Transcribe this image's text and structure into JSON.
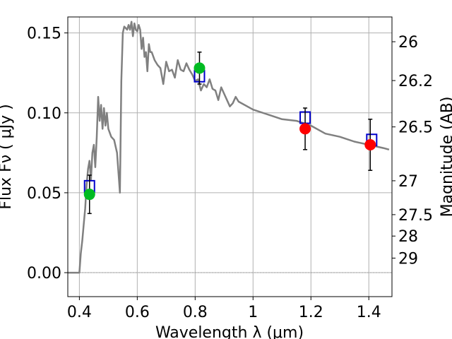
{
  "chart_data": {
    "type": "line",
    "xlabel": "Wavelength  λ (μm)",
    "ylabel": "Flux  Fν  ( μJy )",
    "ylabel_right": "Magnitude (AB)",
    "xlim": [
      0.36,
      1.48
    ],
    "ylim": [
      -0.015,
      0.16
    ],
    "grid": true,
    "x_ticks": [
      0.4,
      0.6,
      0.8,
      1.0,
      1.2,
      1.4
    ],
    "x_tick_labels": [
      "0.4",
      "0.6",
      "0.8",
      "1",
      "1.2",
      "1.4"
    ],
    "y_ticks": [
      0.0,
      0.05,
      0.1,
      0.15
    ],
    "y_tick_labels": [
      "0.00",
      "0.05",
      "0.10",
      "0.15"
    ],
    "right_ticks": [
      {
        "label": "26",
        "flux": 0.1445
      },
      {
        "label": "26.2",
        "flux": 0.1202
      },
      {
        "label": "26.5",
        "flux": 0.0912
      },
      {
        "label": "27",
        "flux": 0.0575
      },
      {
        "label": "27.5",
        "flux": 0.0363
      },
      {
        "label": "28",
        "flux": 0.0229
      },
      {
        "label": "29",
        "flux": 0.0091
      }
    ],
    "series": [
      {
        "kind": "template-spectrum",
        "color": "#808080",
        "x": [
          0.36,
          0.4,
          0.405,
          0.41,
          0.415,
          0.42,
          0.425,
          0.43,
          0.435,
          0.44,
          0.445,
          0.45,
          0.455,
          0.46,
          0.465,
          0.47,
          0.475,
          0.48,
          0.485,
          0.49,
          0.495,
          0.5,
          0.51,
          0.52,
          0.53,
          0.54,
          0.545,
          0.55,
          0.555,
          0.56,
          0.565,
          0.57,
          0.575,
          0.58,
          0.585,
          0.59,
          0.595,
          0.6,
          0.605,
          0.61,
          0.615,
          0.62,
          0.625,
          0.63,
          0.635,
          0.64,
          0.645,
          0.65,
          0.66,
          0.67,
          0.68,
          0.69,
          0.7,
          0.71,
          0.72,
          0.73,
          0.74,
          0.75,
          0.76,
          0.77,
          0.78,
          0.79,
          0.8,
          0.81,
          0.82,
          0.83,
          0.84,
          0.85,
          0.86,
          0.87,
          0.88,
          0.89,
          0.9,
          0.91,
          0.92,
          0.93,
          0.94,
          0.95,
          1.0,
          1.05,
          1.1,
          1.15,
          1.2,
          1.25,
          1.3,
          1.35,
          1.4,
          1.45,
          1.47
        ],
        "y": [
          0.0,
          0.0,
          0.012,
          0.02,
          0.03,
          0.04,
          0.055,
          0.065,
          0.07,
          0.058,
          0.075,
          0.08,
          0.066,
          0.085,
          0.11,
          0.095,
          0.105,
          0.09,
          0.103,
          0.092,
          0.1,
          0.09,
          0.085,
          0.083,
          0.075,
          0.05,
          0.12,
          0.15,
          0.154,
          0.153,
          0.152,
          0.155,
          0.152,
          0.157,
          0.148,
          0.156,
          0.152,
          0.151,
          0.155,
          0.152,
          0.14,
          0.147,
          0.135,
          0.138,
          0.126,
          0.143,
          0.138,
          0.138,
          0.133,
          0.13,
          0.128,
          0.118,
          0.132,
          0.126,
          0.127,
          0.122,
          0.133,
          0.127,
          0.126,
          0.131,
          0.127,
          0.124,
          0.12,
          0.121,
          0.114,
          0.118,
          0.116,
          0.121,
          0.115,
          0.114,
          0.108,
          0.116,
          0.112,
          0.108,
          0.104,
          0.106,
          0.11,
          0.107,
          0.102,
          0.099,
          0.096,
          0.095,
          0.092,
          0.087,
          0.085,
          0.082,
          0.08,
          0.078,
          0.077
        ]
      },
      {
        "kind": "synthetic-photometry",
        "marker": "open-square",
        "color": "#0000cc",
        "x": [
          0.435,
          0.815,
          1.18,
          1.41
        ],
        "y": [
          0.054,
          0.123,
          0.097,
          0.083
        ]
      },
      {
        "kind": "observed-photometry",
        "marker": "filled-circle",
        "x": [
          0.435,
          0.815,
          1.18,
          1.405
        ],
        "y": [
          0.049,
          0.128,
          0.09,
          0.08
        ],
        "yerr": [
          0.012,
          0.01,
          0.013,
          0.016
        ],
        "colors": [
          "#00bb22",
          "#00bb22",
          "#ff0000",
          "#ff0000"
        ]
      }
    ]
  }
}
